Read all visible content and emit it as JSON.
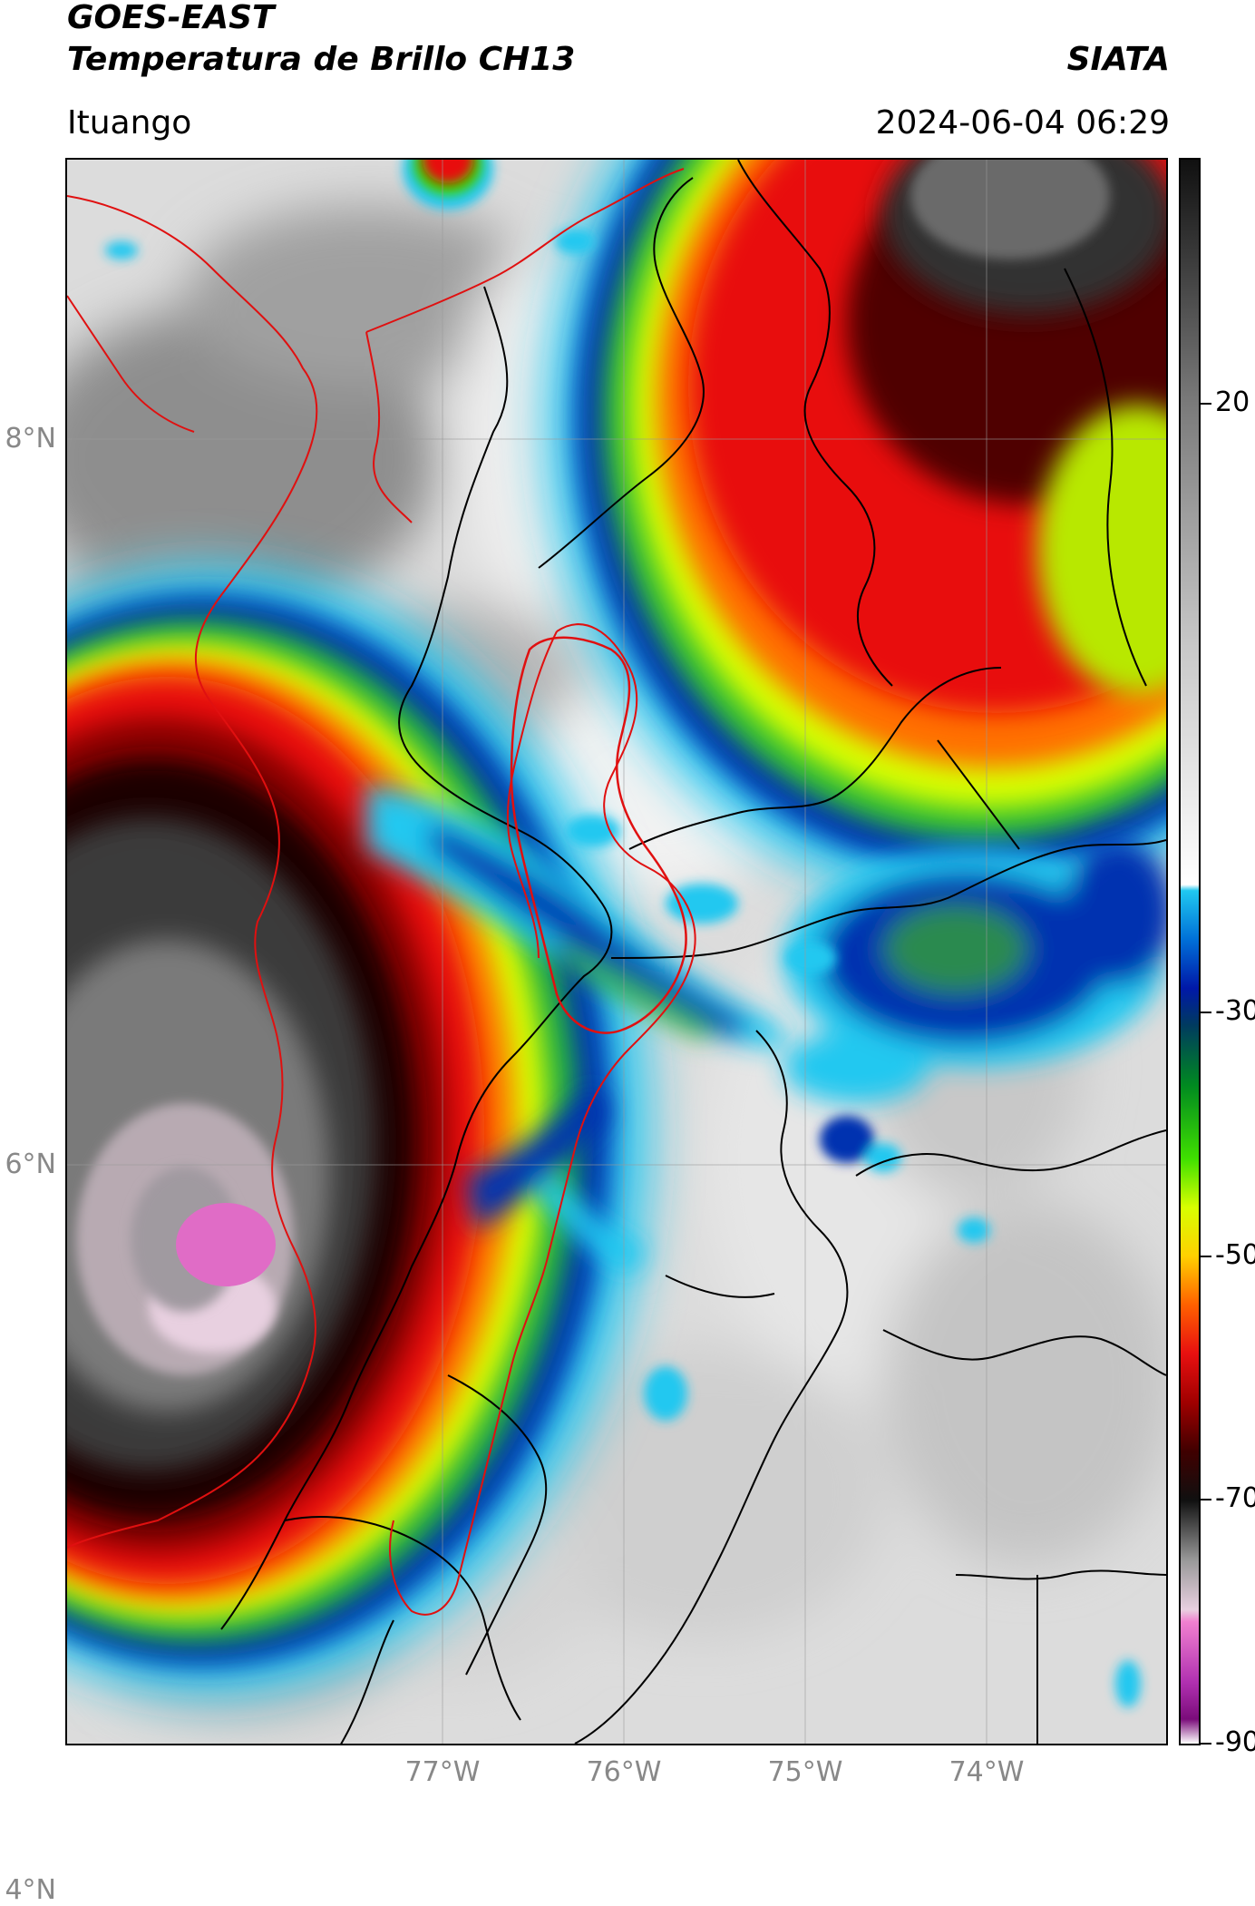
{
  "header": {
    "title_line1": "GOES-EAST",
    "title_line2": "Temperatura de Brillo CH13",
    "brand": "SIATA",
    "location": "Ituango",
    "timestamp": "2024-06-04 06:29"
  },
  "map": {
    "lat_ticks": [
      {
        "label": "8°N",
        "value": 8
      },
      {
        "label": "6°N",
        "value": 6
      },
      {
        "label": "4°N",
        "value": 4
      }
    ],
    "lon_ticks": [
      {
        "label": "77°W",
        "value": -77
      },
      {
        "label": "76°W",
        "value": -76
      },
      {
        "label": "75°W",
        "value": -75
      },
      {
        "label": "74°W",
        "value": -74
      }
    ],
    "colors": {
      "border_red": "#e01010",
      "border_black": "#000000",
      "grid": "#999999"
    }
  },
  "colorbar": {
    "range": [
      -90,
      40
    ],
    "ticks": [
      {
        "label": "20",
        "value": 20
      },
      {
        "label": "-30",
        "value": -30
      },
      {
        "label": "-50",
        "value": -50
      },
      {
        "label": "-70",
        "value": -70
      },
      {
        "label": "-90",
        "value": -90
      }
    ],
    "stops": [
      {
        "value": -90,
        "color": "#ffffff"
      },
      {
        "value": -88,
        "color": "#7a0c7a"
      },
      {
        "value": -85,
        "color": "#b030b0"
      },
      {
        "value": -80,
        "color": "#f080d0"
      },
      {
        "value": -79,
        "color": "#e8d0e0"
      },
      {
        "value": -75,
        "color": "#9a9a9a"
      },
      {
        "value": -70,
        "color": "#101010"
      },
      {
        "value": -66,
        "color": "#400000"
      },
      {
        "value": -62,
        "color": "#a00000"
      },
      {
        "value": -58,
        "color": "#e81010"
      },
      {
        "value": -54,
        "color": "#ff6000"
      },
      {
        "value": -50,
        "color": "#ffd000"
      },
      {
        "value": -46,
        "color": "#d8ff00"
      },
      {
        "value": -42,
        "color": "#40e000"
      },
      {
        "value": -36,
        "color": "#008a20"
      },
      {
        "value": -31,
        "color": "#003a60"
      },
      {
        "value": -28,
        "color": "#0018a8"
      },
      {
        "value": -24,
        "color": "#0070d8"
      },
      {
        "value": -20,
        "color": "#20c8f0"
      },
      {
        "value": -19.5,
        "color": "#ffffff"
      },
      {
        "value": 0,
        "color": "#c8c8c8"
      },
      {
        "value": 20,
        "color": "#7a7a7a"
      },
      {
        "value": 40,
        "color": "#101010"
      }
    ]
  }
}
